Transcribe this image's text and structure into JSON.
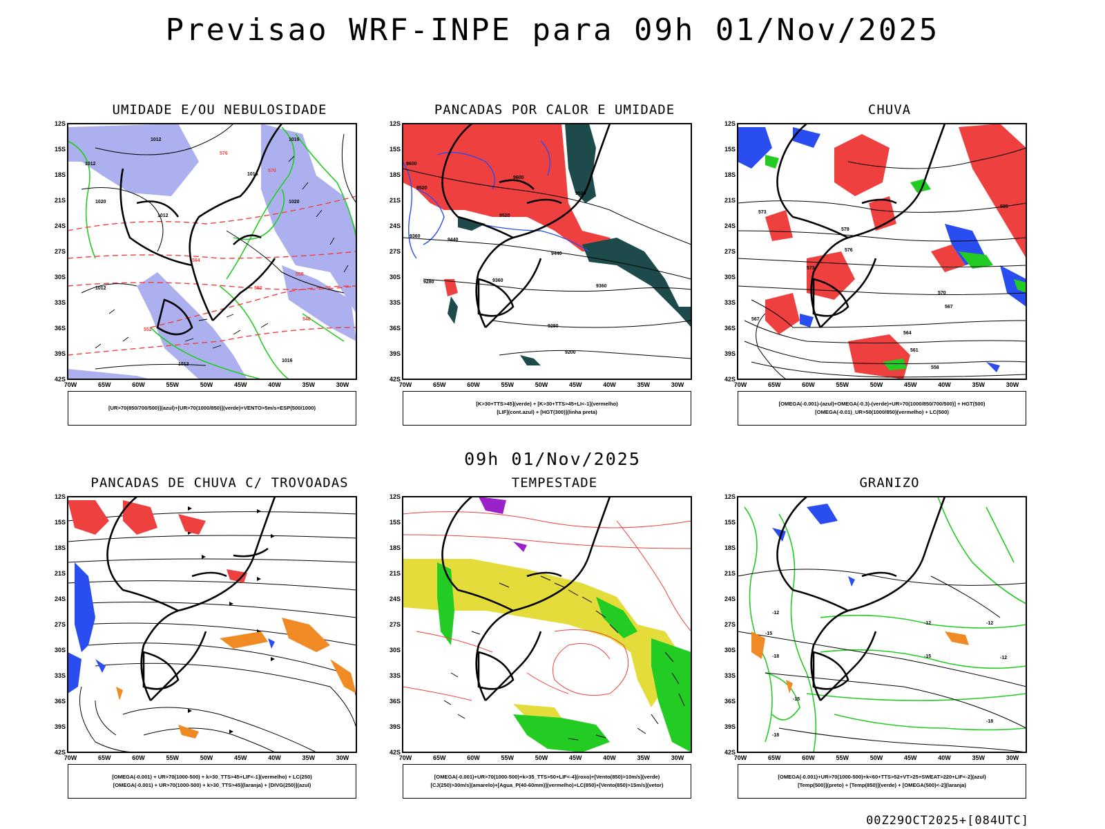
{
  "header": {
    "title": "Previsao WRF-INPE  para 09h 01/Nov/2025"
  },
  "middle": {
    "subtitle": "09h 01/Nov/2025"
  },
  "footer": {
    "run_info": "00Z29OCT2025+[084UTC]"
  },
  "axes": {
    "lat_labels": [
      "12S",
      "15S",
      "18S",
      "21S",
      "24S",
      "27S",
      "30S",
      "33S",
      "36S",
      "39S",
      "42S"
    ],
    "lon_labels": [
      "70W",
      "65W",
      "60W",
      "55W",
      "50W",
      "45W",
      "40W",
      "35W",
      "30W"
    ]
  },
  "colors": {
    "blue": "#2a4df0",
    "green": "#22cc22",
    "red": "#ef4040",
    "dark_teal": "#1d4a4a",
    "lavender": "#a8acee",
    "yellow": "#e4dc3a",
    "orange": "#f08a24",
    "purple": "#9a22c8"
  },
  "panels": [
    {
      "id": "p1",
      "title": "UMIDADE E/OU NEBULOSIDADE",
      "legend": [
        "[UR>70(850/700/500)](azul)+[UR>70(1000/850)](verde)+VENTO>5m/s+ESP(500/1000)"
      ],
      "labels": [
        "1012",
        "1012",
        "1016",
        "1020",
        "1012",
        "1016",
        "1020",
        "1012",
        "1016",
        "1012",
        "570",
        "576",
        "564",
        "552",
        "558",
        "546",
        "552"
      ]
    },
    {
      "id": "p2",
      "title": "PANCADAS POR CALOR E UMIDADE",
      "legend": [
        "[K>30+TTS>45](verde) + [K>30+TTS>45+LI<-1](vermelho)",
        "[LIF](cont.azul) + [HGT(300)](linha preta)"
      ],
      "labels": [
        "9600",
        "9520",
        "9600",
        "9520",
        "9440",
        "9360",
        "9520",
        "9440",
        "9280",
        "9360",
        "9360",
        "9280",
        "9200"
      ]
    },
    {
      "id": "p3",
      "title": "CHUVA",
      "legend": [
        "[OMEGA(-0.001)-(azul)+OMEGA(-0.3)-(verde)+UR>70(1000/850/700/500)] + HGT(500)",
        "[OMEGA(-0.01)_UR>50(1000/850)(vermelho) + LC(500)"
      ],
      "labels": [
        "579",
        "576",
        "573",
        "570",
        "567",
        "564",
        "561",
        "558",
        "585",
        "573",
        "567"
      ]
    },
    {
      "id": "p4",
      "title": "PANCADAS DE CHUVA C/ TROVOADAS",
      "legend": [
        "[OMEGA(-0.001) + UR>70(1000-500) + k>30_TTS>45+LIF<-1](vermelho) + LC(250)",
        "[OMEGA(-0.001) + UR>70(1000-500) + k>30_TTS>45](laranja) + [DIVG(250)](azul)"
      ],
      "labels": []
    },
    {
      "id": "p5",
      "title": "TEMPESTADE",
      "legend": [
        "[OMEGA(-0.001)+UR>70(1000-500)+k>35_TTS>50+LIF<-4](roxo)+[Vento(850)>10m/s](verde)",
        "[CJ(250)>30m/s](amarelo)+[Agua_P(40-60mm)](vermelho)+LC(850)+[Vento(850)>15m/s](vetor)"
      ],
      "labels": []
    },
    {
      "id": "p6",
      "title": "GRANIZO",
      "legend": [
        "[OMEGA(-0.001)+UR>70(1000-500)+k<60+TTS>52+VT>25+SWEAT>220+LIF<-2](azul)",
        "[Temp(500)](preto) + [Temp(850)](verde) + [OMEGA(500)<-2](laranja)"
      ],
      "labels": [
        "-12",
        "-15",
        "-18",
        "-12",
        "-15",
        "-12",
        "-18",
        "-15",
        "-12",
        "-18"
      ]
    }
  ]
}
